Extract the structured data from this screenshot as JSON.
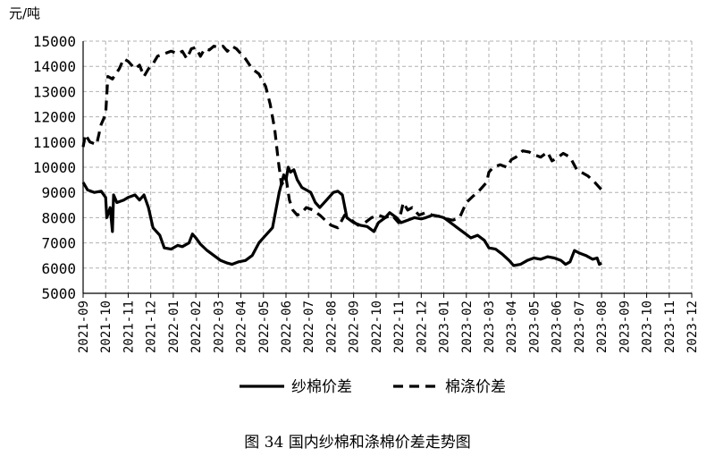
{
  "caption": "图 34   国内纱棉和涤棉价差走势图",
  "chart_data": {
    "type": "line",
    "ylabel": "元/吨",
    "ylim": [
      5000,
      15000
    ],
    "yticks": [
      5000,
      6000,
      7000,
      8000,
      9000,
      10000,
      11000,
      12000,
      13000,
      14000,
      15000
    ],
    "xticks": [
      "2021-09",
      "2021-10",
      "2021-11",
      "2021-12",
      "2022-01",
      "2022-02",
      "2022-03",
      "2022-04",
      "2022-05",
      "2022-06",
      "2022-07",
      "2022-08",
      "2022-09",
      "2022-10",
      "2022-11",
      "2022-12",
      "2023-01",
      "2023-02",
      "2023-03",
      "2023-04",
      "2023-05",
      "2023-06",
      "2023-07",
      "2023-08",
      "2023-09",
      "2023-10",
      "2023-11",
      "2023-12"
    ],
    "grid": true,
    "legend_position": "bottom-center",
    "series": [
      {
        "name": "纱棉价差",
        "style": "solid",
        "points": [
          [
            0,
            9400
          ],
          [
            0.2,
            9100
          ],
          [
            0.5,
            9000
          ],
          [
            0.8,
            9050
          ],
          [
            1.0,
            8800
          ],
          [
            1.05,
            8000
          ],
          [
            1.2,
            8400
          ],
          [
            1.3,
            7450
          ],
          [
            1.35,
            8900
          ],
          [
            1.5,
            8600
          ],
          [
            1.8,
            8700
          ],
          [
            2.0,
            8800
          ],
          [
            2.3,
            8900
          ],
          [
            2.5,
            8700
          ],
          [
            2.7,
            8900
          ],
          [
            2.9,
            8400
          ],
          [
            3.1,
            7600
          ],
          [
            3.4,
            7300
          ],
          [
            3.6,
            6800
          ],
          [
            3.9,
            6750
          ],
          [
            4.2,
            6900
          ],
          [
            4.4,
            6850
          ],
          [
            4.7,
            7000
          ],
          [
            4.85,
            7350
          ],
          [
            5.0,
            7200
          ],
          [
            5.2,
            6950
          ],
          [
            5.5,
            6700
          ],
          [
            5.8,
            6500
          ],
          [
            6.1,
            6300
          ],
          [
            6.4,
            6200
          ],
          [
            6.6,
            6150
          ],
          [
            6.9,
            6250
          ],
          [
            7.2,
            6300
          ],
          [
            7.5,
            6500
          ],
          [
            7.8,
            7000
          ],
          [
            8.1,
            7300
          ],
          [
            8.4,
            7600
          ],
          [
            8.7,
            9000
          ],
          [
            8.9,
            9700
          ],
          [
            9.0,
            9500
          ],
          [
            9.1,
            10000
          ],
          [
            9.2,
            9800
          ],
          [
            9.35,
            9900
          ],
          [
            9.5,
            9500
          ],
          [
            9.7,
            9200
          ],
          [
            9.9,
            9100
          ],
          [
            10.1,
            9000
          ],
          [
            10.3,
            8600
          ],
          [
            10.5,
            8400
          ],
          [
            10.8,
            8700
          ],
          [
            11.1,
            9000
          ],
          [
            11.3,
            9050
          ],
          [
            11.5,
            8900
          ],
          [
            11.7,
            8000
          ],
          [
            12.0,
            7800
          ],
          [
            12.3,
            7700
          ],
          [
            12.6,
            7650
          ],
          [
            12.9,
            7450
          ],
          [
            13.1,
            7800
          ],
          [
            13.4,
            8000
          ],
          [
            13.6,
            8200
          ],
          [
            13.9,
            8000
          ],
          [
            14.1,
            7800
          ],
          [
            14.4,
            7900
          ],
          [
            14.7,
            8000
          ],
          [
            15.0,
            7950
          ],
          [
            15.2,
            8000
          ],
          [
            15.5,
            8100
          ],
          [
            15.8,
            8050
          ],
          [
            16.0,
            8000
          ],
          [
            16.3,
            7800
          ],
          [
            16.6,
            7600
          ],
          [
            16.9,
            7400
          ],
          [
            17.2,
            7200
          ],
          [
            17.5,
            7300
          ],
          [
            17.8,
            7100
          ],
          [
            18.0,
            6800
          ],
          [
            18.3,
            6750
          ],
          [
            18.6,
            6550
          ],
          [
            18.9,
            6300
          ],
          [
            19.1,
            6100
          ],
          [
            19.4,
            6150
          ],
          [
            19.7,
            6300
          ],
          [
            20.0,
            6400
          ],
          [
            20.3,
            6350
          ],
          [
            20.6,
            6450
          ],
          [
            20.9,
            6400
          ],
          [
            21.2,
            6300
          ],
          [
            21.4,
            6150
          ],
          [
            21.6,
            6250
          ],
          [
            21.8,
            6700
          ],
          [
            22.0,
            6600
          ],
          [
            22.3,
            6500
          ],
          [
            22.6,
            6350
          ],
          [
            22.8,
            6400
          ],
          [
            22.9,
            6150
          ],
          [
            23.0,
            6200
          ]
        ]
      },
      {
        "name": "棉涤价差",
        "style": "dashed",
        "points": [
          [
            0,
            10800
          ],
          [
            0.1,
            11300
          ],
          [
            0.3,
            11000
          ],
          [
            0.6,
            10900
          ],
          [
            0.8,
            11700
          ],
          [
            1.0,
            12100
          ],
          [
            1.1,
            13600
          ],
          [
            1.3,
            13500
          ],
          [
            1.6,
            13900
          ],
          [
            1.8,
            14300
          ],
          [
            2.0,
            14200
          ],
          [
            2.3,
            13900
          ],
          [
            2.5,
            14050
          ],
          [
            2.7,
            13600
          ],
          [
            2.9,
            13900
          ],
          [
            3.1,
            14100
          ],
          [
            3.3,
            14400
          ],
          [
            3.6,
            14500
          ],
          [
            3.9,
            14600
          ],
          [
            4.2,
            14500
          ],
          [
            4.4,
            14600
          ],
          [
            4.6,
            14300
          ],
          [
            4.8,
            14700
          ],
          [
            5.0,
            14750
          ],
          [
            5.2,
            14400
          ],
          [
            5.4,
            14700
          ],
          [
            5.6,
            14650
          ],
          [
            5.8,
            14800
          ],
          [
            6.0,
            14750
          ],
          [
            6.2,
            14800
          ],
          [
            6.4,
            14600
          ],
          [
            6.6,
            14800
          ],
          [
            6.8,
            14700
          ],
          [
            7.0,
            14500
          ],
          [
            7.2,
            14300
          ],
          [
            7.5,
            13900
          ],
          [
            7.8,
            13700
          ],
          [
            8.1,
            13200
          ],
          [
            8.3,
            12500
          ],
          [
            8.5,
            11500
          ],
          [
            8.65,
            10300
          ],
          [
            8.8,
            9300
          ],
          [
            9.0,
            9600
          ],
          [
            9.15,
            8700
          ],
          [
            9.3,
            8300
          ],
          [
            9.5,
            8100
          ],
          [
            9.7,
            8200
          ],
          [
            9.9,
            8400
          ],
          [
            10.2,
            8300
          ],
          [
            10.5,
            8100
          ],
          [
            10.8,
            7850
          ],
          [
            11.0,
            7700
          ],
          [
            11.3,
            7600
          ],
          [
            11.6,
            8100
          ],
          [
            11.9,
            7900
          ],
          [
            12.2,
            7700
          ],
          [
            12.5,
            7800
          ],
          [
            12.8,
            8000
          ],
          [
            13.1,
            8100
          ],
          [
            13.4,
            8000
          ],
          [
            13.7,
            8100
          ],
          [
            14.0,
            7800
          ],
          [
            14.2,
            8600
          ],
          [
            14.4,
            8300
          ],
          [
            14.6,
            8400
          ],
          [
            14.9,
            8100
          ],
          [
            15.2,
            8200
          ],
          [
            15.5,
            8100
          ],
          [
            15.8,
            8050
          ],
          [
            16.1,
            7950
          ],
          [
            16.4,
            7900
          ],
          [
            16.7,
            8000
          ],
          [
            17.0,
            8600
          ],
          [
            17.3,
            8850
          ],
          [
            17.6,
            9100
          ],
          [
            17.9,
            9400
          ],
          [
            18.0,
            9800
          ],
          [
            18.2,
            10000
          ],
          [
            18.5,
            10100
          ],
          [
            18.8,
            10000
          ],
          [
            19.0,
            10300
          ],
          [
            19.2,
            10400
          ],
          [
            19.5,
            10650
          ],
          [
            19.8,
            10600
          ],
          [
            20.0,
            10500
          ],
          [
            20.3,
            10400
          ],
          [
            20.6,
            10600
          ],
          [
            20.8,
            10250
          ],
          [
            21.0,
            10350
          ],
          [
            21.3,
            10550
          ],
          [
            21.6,
            10400
          ],
          [
            21.9,
            9900
          ],
          [
            22.1,
            9800
          ],
          [
            22.4,
            9650
          ],
          [
            22.7,
            9400
          ],
          [
            22.9,
            9200
          ],
          [
            23.0,
            9100
          ]
        ]
      }
    ]
  }
}
